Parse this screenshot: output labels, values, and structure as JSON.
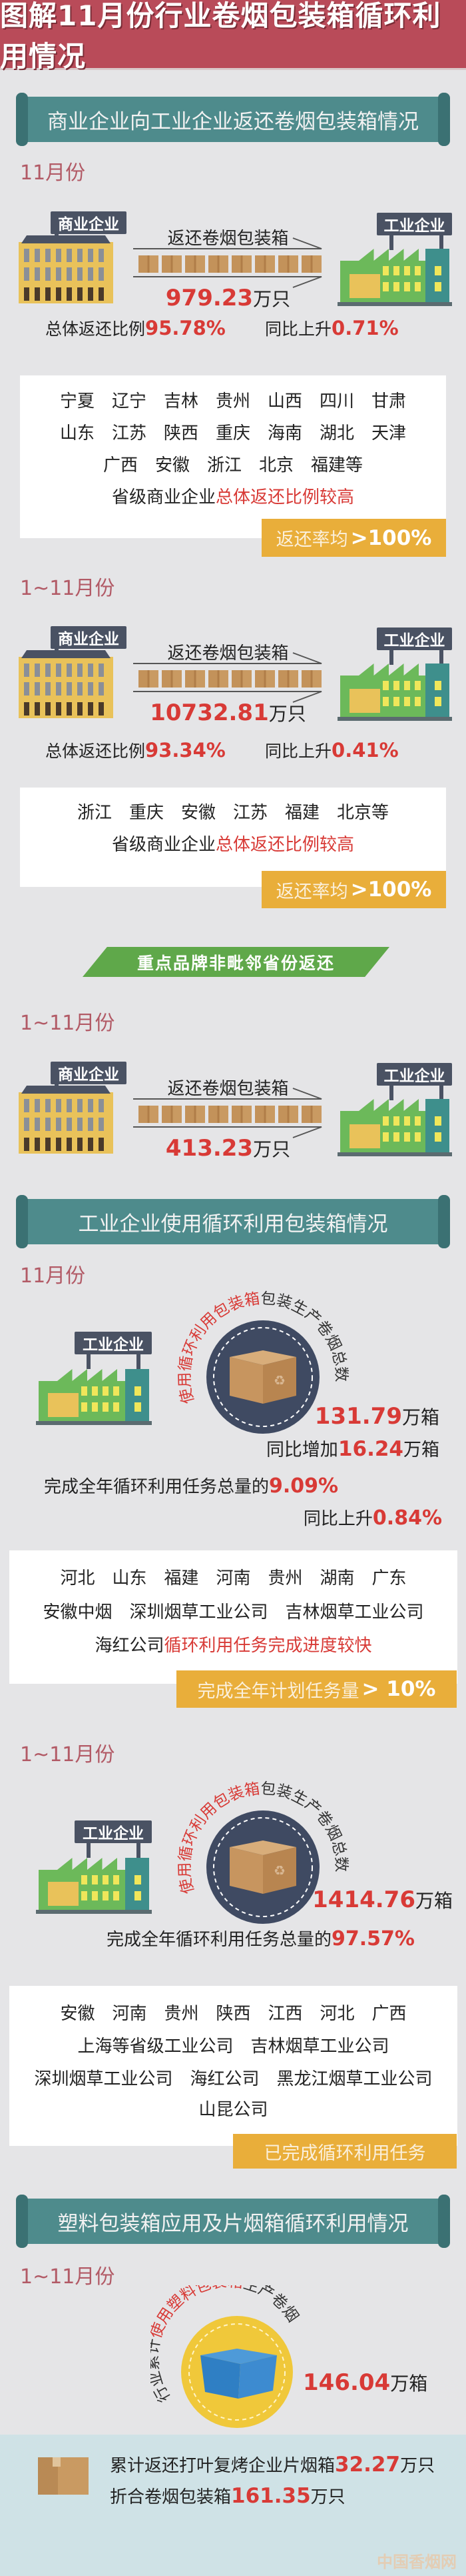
{
  "header": {
    "title": "图解11月份行业卷烟包装箱循环利用情况"
  },
  "section1": {
    "banner": "商业企业向工业企业返还卷烟包装箱情况",
    "month": {
      "period": "11月份",
      "diagram": {
        "from": "商业企业",
        "to": "工业企业",
        "label": "返还卷烟包装箱",
        "value": "979.23",
        "unit": "万只"
      },
      "ratio_label": "总体返还比例",
      "ratio": "95.78%",
      "yoy_label": "同比上升",
      "yoy": "0.71%",
      "rows": [
        [
          "宁夏",
          "辽宁",
          "吉林",
          "贵州",
          "山西",
          "四川",
          "甘肃"
        ],
        [
          "山东",
          "江苏",
          "陕西",
          "重庆",
          "海南",
          "湖北",
          "天津"
        ],
        [
          "广西",
          "安徽",
          "浙江",
          "北京",
          "福建等"
        ]
      ],
      "note_black": "省级商业企业",
      "note_red": "总体返还比例较高",
      "badge_text": "返还率均",
      "badge_value": ">100%"
    },
    "ytd": {
      "period": "1~11月份",
      "diagram": {
        "from": "商业企业",
        "to": "工业企业",
        "label": "返还卷烟包装箱",
        "value": "10732.81",
        "unit": "万只"
      },
      "ratio_label": "总体返还比例",
      "ratio": "93.34%",
      "yoy_label": "同比上升",
      "yoy": "0.41%",
      "rows": [
        [
          "浙江",
          "重庆",
          "安徽",
          "江苏",
          "福建",
          "北京等"
        ]
      ],
      "note_black": "省级商业企业",
      "note_red": "总体返还比例较高",
      "badge_text": "返还率均",
      "badge_value": ">100%"
    }
  },
  "key_brands": {
    "banner": "重点品牌非毗邻省份返还",
    "period": "1~11月份",
    "diagram": {
      "from": "商业企业",
      "to": "工业企业",
      "label": "返还卷烟包装箱",
      "value": "413.23",
      "unit": "万只"
    }
  },
  "section2": {
    "banner": "工业企业使用循环利用包装箱情况",
    "month": {
      "period": "11月份",
      "factory": "工业企业",
      "arc_red": "使用循环利用包装箱",
      "arc_black": "包装生产卷烟总数",
      "value": "131.79",
      "unit": "万箱",
      "increase_label": "同比增加",
      "increase": "16.24",
      "increase_unit": "万箱",
      "completion_label": "完成全年循环利用任务总量的",
      "completion": "9.09%",
      "yoy_label": "同比上升",
      "yoy": "0.84%",
      "rows": [
        [
          "河北",
          "山东",
          "福建",
          "河南",
          "贵州",
          "湖南",
          "广东"
        ],
        [
          "安徽中烟",
          "深圳烟草工业公司",
          "吉林烟草工业公司"
        ]
      ],
      "note_black": "海红公司",
      "note_red": "循环利用任务完成进度较快",
      "badge_text": "完成全年计划任务量",
      "badge_value": "> 10%"
    },
    "ytd": {
      "period": "1~11月份",
      "factory": "工业企业",
      "arc_red": "使用循环利用包装箱",
      "arc_black": "包装生产卷烟总数",
      "value": "1414.76",
      "unit": "万箱",
      "completion_label": "完成全年循环利用任务总量的",
      "completion": "97.57%",
      "rows": [
        [
          "安徽",
          "河南",
          "贵州",
          "陕西",
          "江西",
          "河北",
          "广西"
        ],
        [
          "上海等省级工业公司",
          "吉林烟草工业公司"
        ],
        [
          "深圳烟草工业公司",
          "海红公司",
          "黑龙江烟草工业公司"
        ],
        [
          "山昆公司"
        ]
      ],
      "badge_text": "已完成循环利用任务"
    }
  },
  "section3": {
    "banner": "塑料包装箱应用及片烟箱循环利用情况",
    "period": "1~11月份",
    "arc_black1": "行业累计",
    "arc_red": "使用塑料包装箱",
    "arc_black2": "生产卷烟",
    "value": "146.04",
    "unit": "万箱",
    "line1_label": "累计返还打叶复烤企业片烟箱",
    "line1_value": "32.27",
    "line1_unit": "万只",
    "line2_label": "折合卷烟包装箱",
    "line2_value": "161.35",
    "line2_unit": "万只"
  },
  "logo": "中国香烟网",
  "colors": {
    "header": "#b94b59",
    "banner": "#4e8b8c",
    "highlight": "#d83a36",
    "badge": "#e9ae3a",
    "period": "#b25a66"
  }
}
